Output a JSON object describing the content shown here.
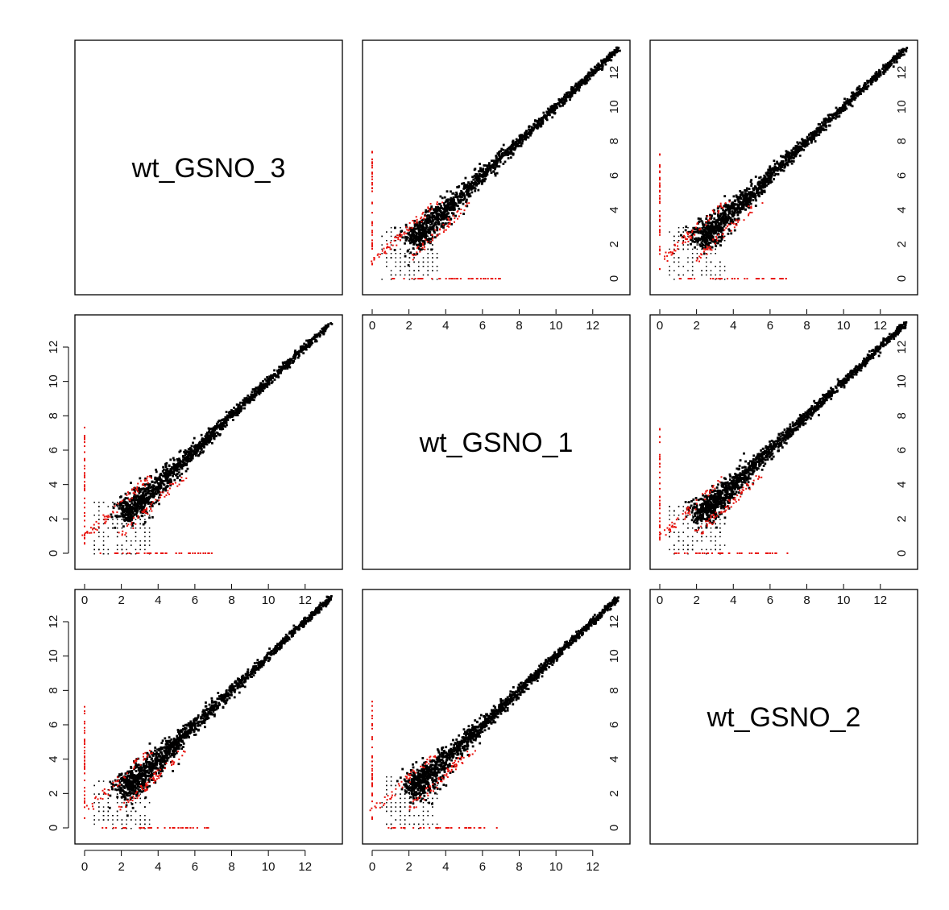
{
  "chart_data": {
    "type": "scatter",
    "layout": "pairs-matrix",
    "variables": [
      "wt_GSNO_3",
      "wt_GSNO_1",
      "wt_GSNO_2"
    ],
    "axis_range": [
      0,
      13.5
    ],
    "ticks": [
      0,
      2,
      4,
      6,
      8,
      10,
      12
    ],
    "tick_labels": [
      "0",
      "2",
      "4",
      "6",
      "8",
      "10",
      "12"
    ],
    "grid": false,
    "legend": "none",
    "colors": {
      "concordant": "#000000",
      "discordant": "#e8120c",
      "frame": "#000000"
    },
    "series": [
      {
        "description_free": true,
        "color": "concordant",
        "trend": {
          "slope": 1.0,
          "intercept": 0.0,
          "x_range": [
            2.3,
            13.4
          ]
        }
      },
      {
        "color": "discordant",
        "zero_floor_x_range": [
          0.8,
          7.0
        ],
        "zero_floor_y_range": [
          0.5,
          7.8
        ]
      }
    ],
    "panels": [
      {
        "row": 0,
        "col": 1,
        "x_var": "wt_GSNO_1",
        "y_var": "wt_GSNO_3"
      },
      {
        "row": 0,
        "col": 2,
        "x_var": "wt_GSNO_2",
        "y_var": "wt_GSNO_3"
      },
      {
        "row": 1,
        "col": 0,
        "x_var": "wt_GSNO_3",
        "y_var": "wt_GSNO_1"
      },
      {
        "row": 1,
        "col": 2,
        "x_var": "wt_GSNO_2",
        "y_var": "wt_GSNO_1"
      },
      {
        "row": 2,
        "col": 0,
        "x_var": "wt_GSNO_3",
        "y_var": "wt_GSNO_2"
      },
      {
        "row": 2,
        "col": 1,
        "x_var": "wt_GSNO_1",
        "y_var": "wt_GSNO_2"
      }
    ]
  }
}
